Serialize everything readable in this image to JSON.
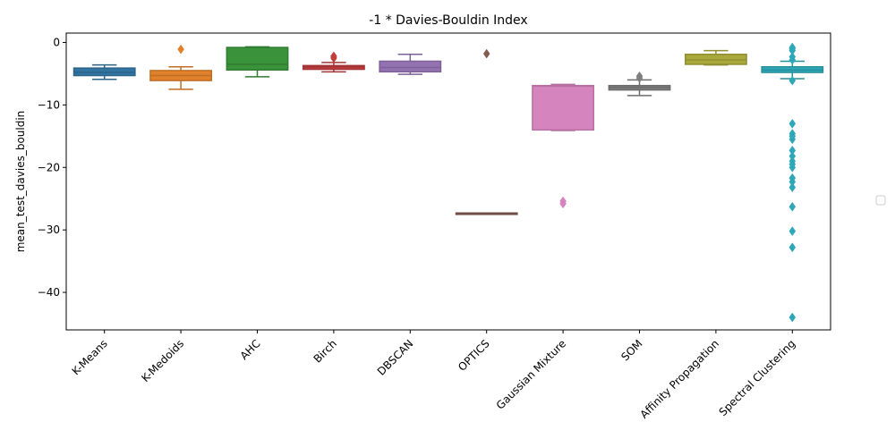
{
  "chart_data": {
    "type": "box",
    "title": "-1 * Davies-Bouldin Index",
    "xlabel": "",
    "ylabel": "mean_test_davies_bouldin",
    "ylim": [
      -46,
      1.5
    ],
    "yticks": [
      0,
      -10,
      -20,
      -30,
      -40
    ],
    "ytick_labels": [
      "0",
      "−10",
      "−20",
      "−30",
      "−40"
    ],
    "grid": false,
    "legend": "right (empty)",
    "categories": [
      "K-Means",
      "K-Medoids",
      "AHC",
      "Birch",
      "DBSCAN",
      "OPTICS",
      "Gaussian Mixture",
      "SOM",
      "Affinity Propagation",
      "Spectral Clustering"
    ],
    "boxes": [
      {
        "name": "K-Means",
        "whisker_low": -5.9,
        "q1": -5.3,
        "median": -4.8,
        "q3": -4.1,
        "whisker_high": -3.6,
        "outliers": [],
        "color": "#3274a1"
      },
      {
        "name": "K-Medoids",
        "whisker_low": -7.5,
        "q1": -6.1,
        "median": -5.3,
        "q3": -4.5,
        "whisker_high": -3.9,
        "outliers": [
          -1.1
        ],
        "color": "#e1812c"
      },
      {
        "name": "AHC",
        "whisker_low": -5.5,
        "q1": -4.4,
        "median": -3.5,
        "q3": -0.8,
        "whisker_high": -0.7,
        "outliers": [],
        "color": "#3a923a"
      },
      {
        "name": "Birch",
        "whisker_low": -4.7,
        "q1": -4.3,
        "median": -3.9,
        "q3": -3.7,
        "whisker_high": -3.2,
        "outliers": [
          -2.2,
          -2.5
        ],
        "color": "#c03d3e"
      },
      {
        "name": "DBSCAN",
        "whisker_low": -5.1,
        "q1": -4.7,
        "median": -4.0,
        "q3": -3.0,
        "whisker_high": -1.9,
        "outliers": [],
        "color": "#9372b2"
      },
      {
        "name": "OPTICS",
        "whisker_low": -27.3,
        "q1": -27.3,
        "median": -27.3,
        "q3": -27.3,
        "whisker_high": -27.3,
        "outliers": [
          -1.8
        ],
        "color": "#845b53"
      },
      {
        "name": "Gaussian Mixture",
        "whisker_low": -14.1,
        "q1": -14.0,
        "median": -7.0,
        "q3": -6.9,
        "whisker_high": -6.7,
        "outliers": [
          -25.4,
          -25.8
        ],
        "color": "#d684bd"
      },
      {
        "name": "SOM",
        "whisker_low": -8.5,
        "q1": -7.6,
        "median": -7.2,
        "q3": -6.9,
        "whisker_high": -6.0,
        "outliers": [
          -5.4,
          -5.7
        ],
        "color": "#7f7f7f"
      },
      {
        "name": "Affinity Propagation",
        "whisker_low": -3.6,
        "q1": -3.5,
        "median": -2.8,
        "q3": -1.9,
        "whisker_high": -1.3,
        "outliers": [],
        "color": "#a9a83b"
      },
      {
        "name": "Spectral Clustering",
        "whisker_low": -5.8,
        "q1": -4.8,
        "median": -4.4,
        "q3": -3.9,
        "whisker_high": -3.0,
        "outliers": [
          -0.8,
          -1.0,
          -1.3,
          -2.3,
          -2.8,
          -6.1,
          -13.0,
          -14.6,
          -15.0,
          -15.5,
          -17.3,
          -18.2,
          -19.0,
          -19.5,
          -20.0,
          -21.7,
          -22.3,
          -23.2,
          -26.3,
          -30.2,
          -32.8,
          -44.0
        ],
        "color": "#2ea8b8"
      }
    ]
  }
}
